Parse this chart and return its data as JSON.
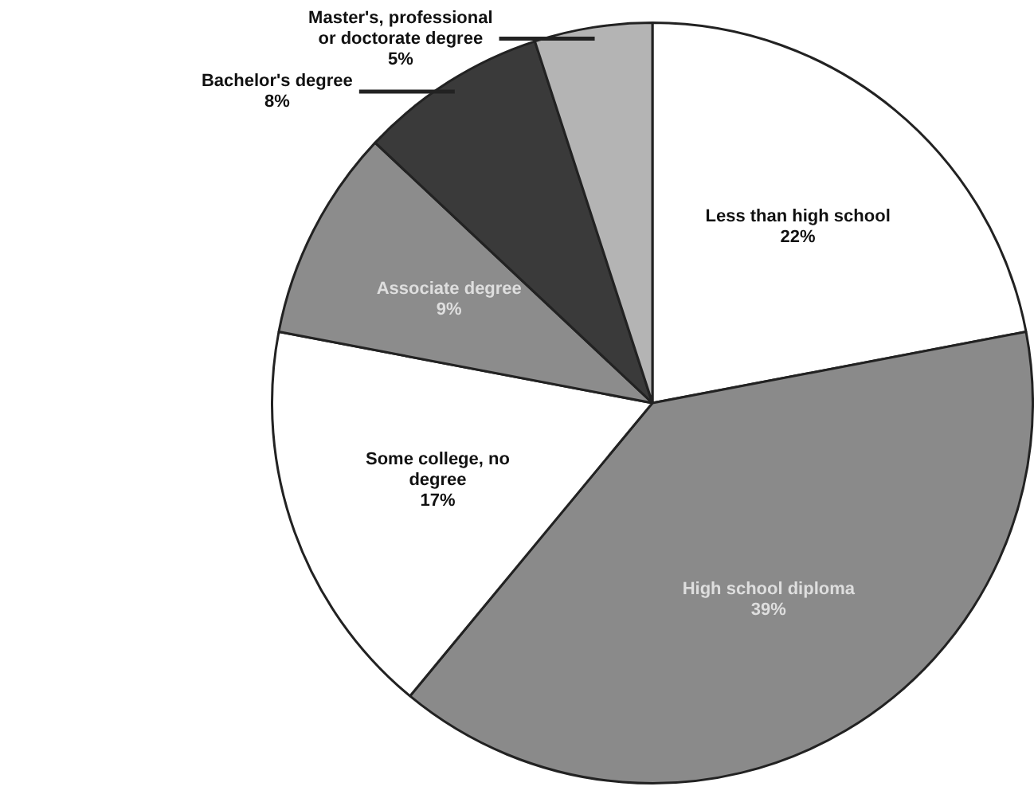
{
  "chart_data": {
    "type": "pie",
    "categories": [
      "Less than high school",
      "High school diploma",
      "Some college, no degree",
      "Associate degree",
      "Bachelor's degree",
      "Master's, professional or doctorate degree"
    ],
    "values": [
      22,
      39,
      17,
      9,
      8,
      5
    ],
    "colors": [
      "#ffffff",
      "#8a8a8a",
      "#ffffff",
      "#8c8c8c",
      "#3a3a3a",
      "#b4b4b4"
    ],
    "value_labels": [
      "22%",
      "39%",
      "17%",
      "9%",
      "8%",
      "5%"
    ],
    "legend": false
  }
}
